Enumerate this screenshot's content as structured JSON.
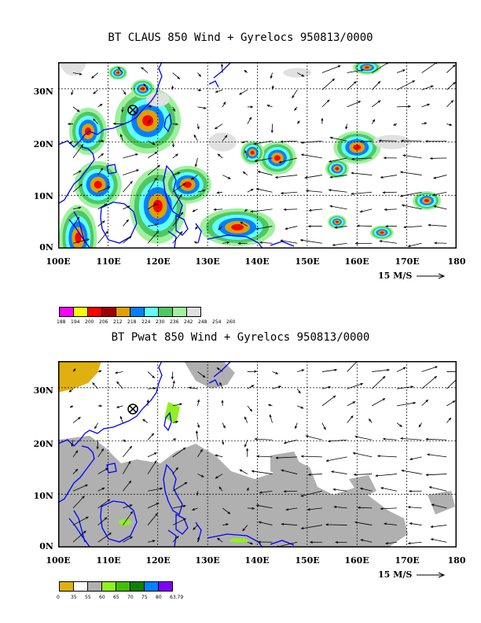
{
  "panel1": {
    "title": "BT CLAUS 850 Wind + Gyrelocs 950813/0000",
    "colorbar_values": [
      "188",
      "194",
      "200",
      "206",
      "212",
      "218",
      "224",
      "230",
      "236",
      "242",
      "248",
      "254",
      "260"
    ],
    "colorbar_colors": [
      "#ff00ff",
      "#ffff00",
      "#ff0000",
      "#a00000",
      "#e0a000",
      "#0080ff",
      "#60ffff",
      "#50c860",
      "#a0f0a0",
      "#e0e0e0"
    ]
  },
  "panel2": {
    "title": "BT Pwat 850 Wind + Gyrelocs 950813/0000",
    "colorbar_values": [
      "0",
      "35",
      "55",
      "60",
      "65",
      "70",
      "75",
      "80",
      "63.79"
    ],
    "colorbar_colors": [
      "#e0b010",
      "#ffffff",
      "#b0b0b0",
      "#90f020",
      "#40c000",
      "#108000",
      "#0080ff",
      "#8000ff"
    ]
  },
  "axes": {
    "y_labels": [
      "30N",
      "20N",
      "10N",
      "0N"
    ],
    "x_labels": [
      "100E",
      "110E",
      "120E",
      "130E",
      "140E",
      "150E",
      "160E",
      "170E",
      "180"
    ]
  },
  "vector_reference": "15 M/S",
  "colors": {
    "coast": "#0000ff",
    "frame": "#000000"
  }
}
